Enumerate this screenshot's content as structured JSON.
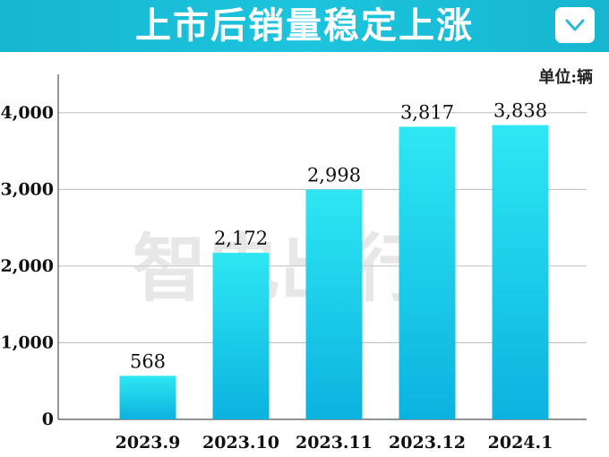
{
  "header": {
    "title": "上市后销量稳定上涨",
    "toggle_icon": "chevron-down-icon",
    "background": "#1cc4dc"
  },
  "unit": "单位:辆",
  "watermark": "智电出行",
  "chart_data": {
    "type": "bar",
    "categories": [
      "2023.9",
      "2023.10",
      "2023.11",
      "2023.12",
      "2024.1"
    ],
    "values": [
      568,
      2172,
      2998,
      3817,
      3838
    ],
    "data_labels": [
      "568",
      "2,172",
      "2,998",
      "3,817",
      "3,838"
    ],
    "yticks": [
      0,
      1000,
      2000,
      3000,
      4000
    ],
    "ytick_labels": [
      "0",
      "1,000",
      "2,000",
      "3,000",
      "4,000"
    ],
    "ylim": [
      0,
      4500
    ],
    "grid": true,
    "bar_color_top": "#2ee7f3",
    "bar_color_bottom": "#0bb2df"
  }
}
